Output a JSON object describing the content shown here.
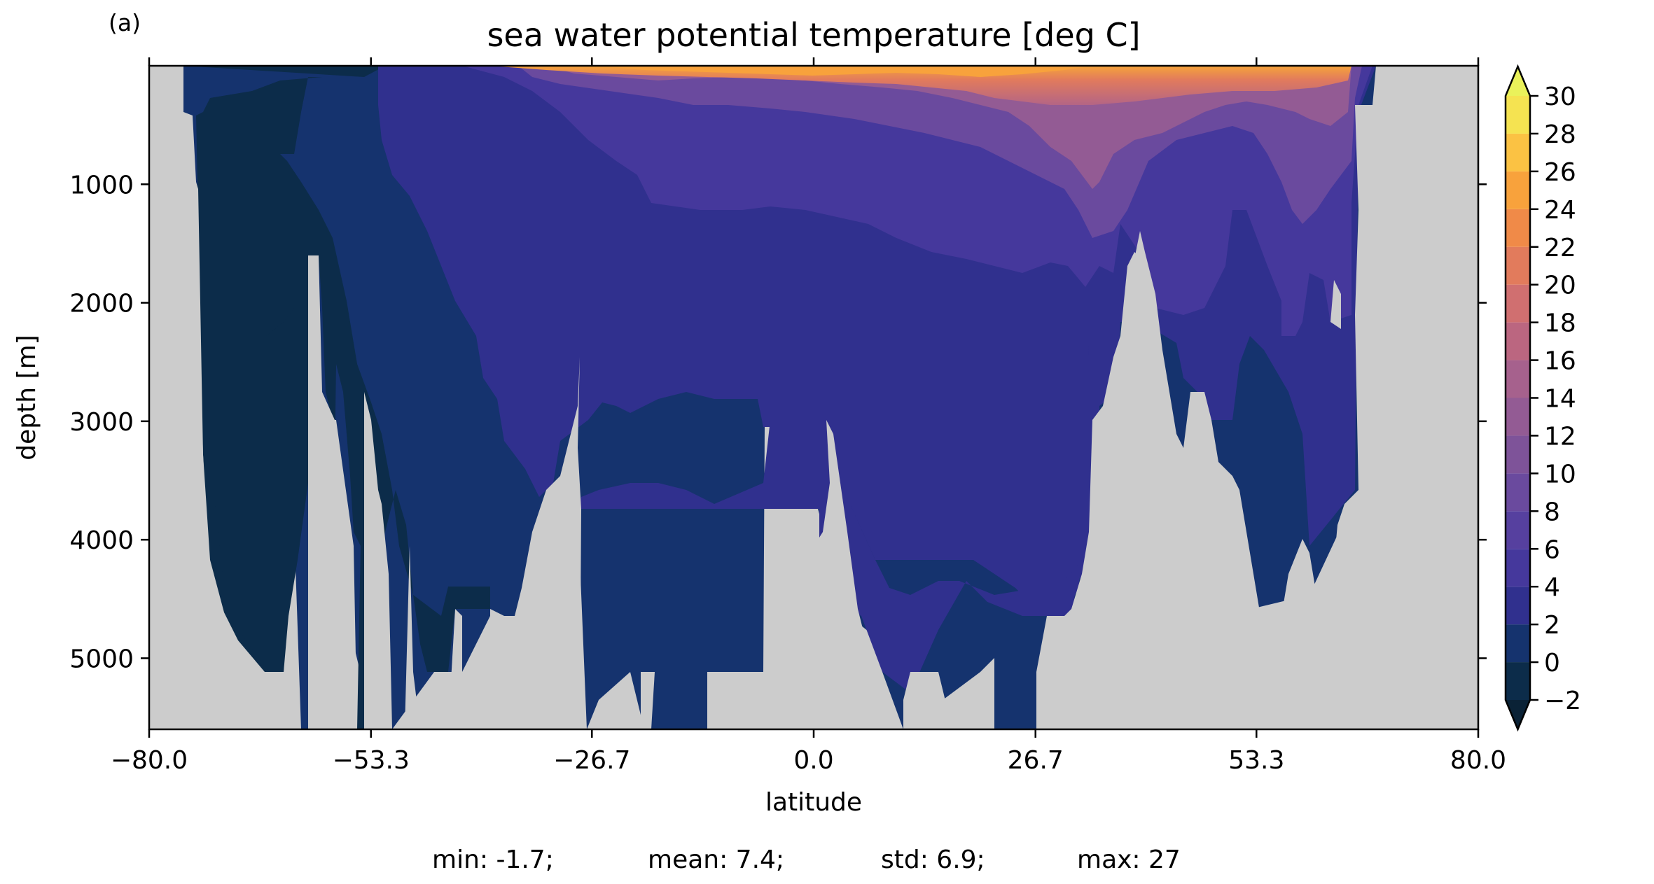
{
  "chart_data": {
    "type": "heatmap",
    "panel_label": "(a)",
    "title": "sea water potential temperature [deg C]",
    "xlabel": "latitude",
    "ylabel": "depth [m]",
    "xlim": [
      -80,
      80
    ],
    "ylim": [
      0,
      5600
    ],
    "y_inverted": true,
    "x_ticks": [
      "−80.0",
      "−53.3",
      "−26.7",
      "0.0",
      "26.7",
      "53.3",
      "80.0"
    ],
    "x_tick_values": [
      -80,
      -53.3,
      -26.7,
      0,
      26.7,
      53.3,
      80
    ],
    "y_ticks": [
      "1000",
      "2000",
      "3000",
      "4000",
      "5000"
    ],
    "y_tick_values": [
      1000,
      2000,
      3000,
      4000,
      5000
    ],
    "land_color": "#cccccc",
    "colorbar": {
      "levels": [
        -2,
        0,
        2,
        4,
        6,
        8,
        10,
        12,
        14,
        16,
        18,
        20,
        22,
        24,
        26,
        28,
        30
      ],
      "tick_labels": [
        "−2",
        "0",
        "2",
        "4",
        "6",
        "8",
        "10",
        "12",
        "14",
        "16",
        "18",
        "20",
        "22",
        "24",
        "26",
        "28",
        "30"
      ],
      "colors": [
        "#0c2c4a",
        "#15336e",
        "#30308e",
        "#45389c",
        "#56409f",
        "#6a4a9e",
        "#7e5399",
        "#935b94",
        "#a6618d",
        "#bb6680",
        "#d06f70",
        "#e27b5c",
        "#f08a48",
        "#f8a23c",
        "#fbc243",
        "#f5e351"
      ],
      "under_color": "#0a2236",
      "over_color": "#eaf25a",
      "extend": "both"
    },
    "stats": [
      {
        "label": "min: -1.7;"
      },
      {
        "label": "mean: 7.4;"
      },
      {
        "label": "std: 6.9;"
      },
      {
        "label": "max: 27"
      }
    ]
  }
}
